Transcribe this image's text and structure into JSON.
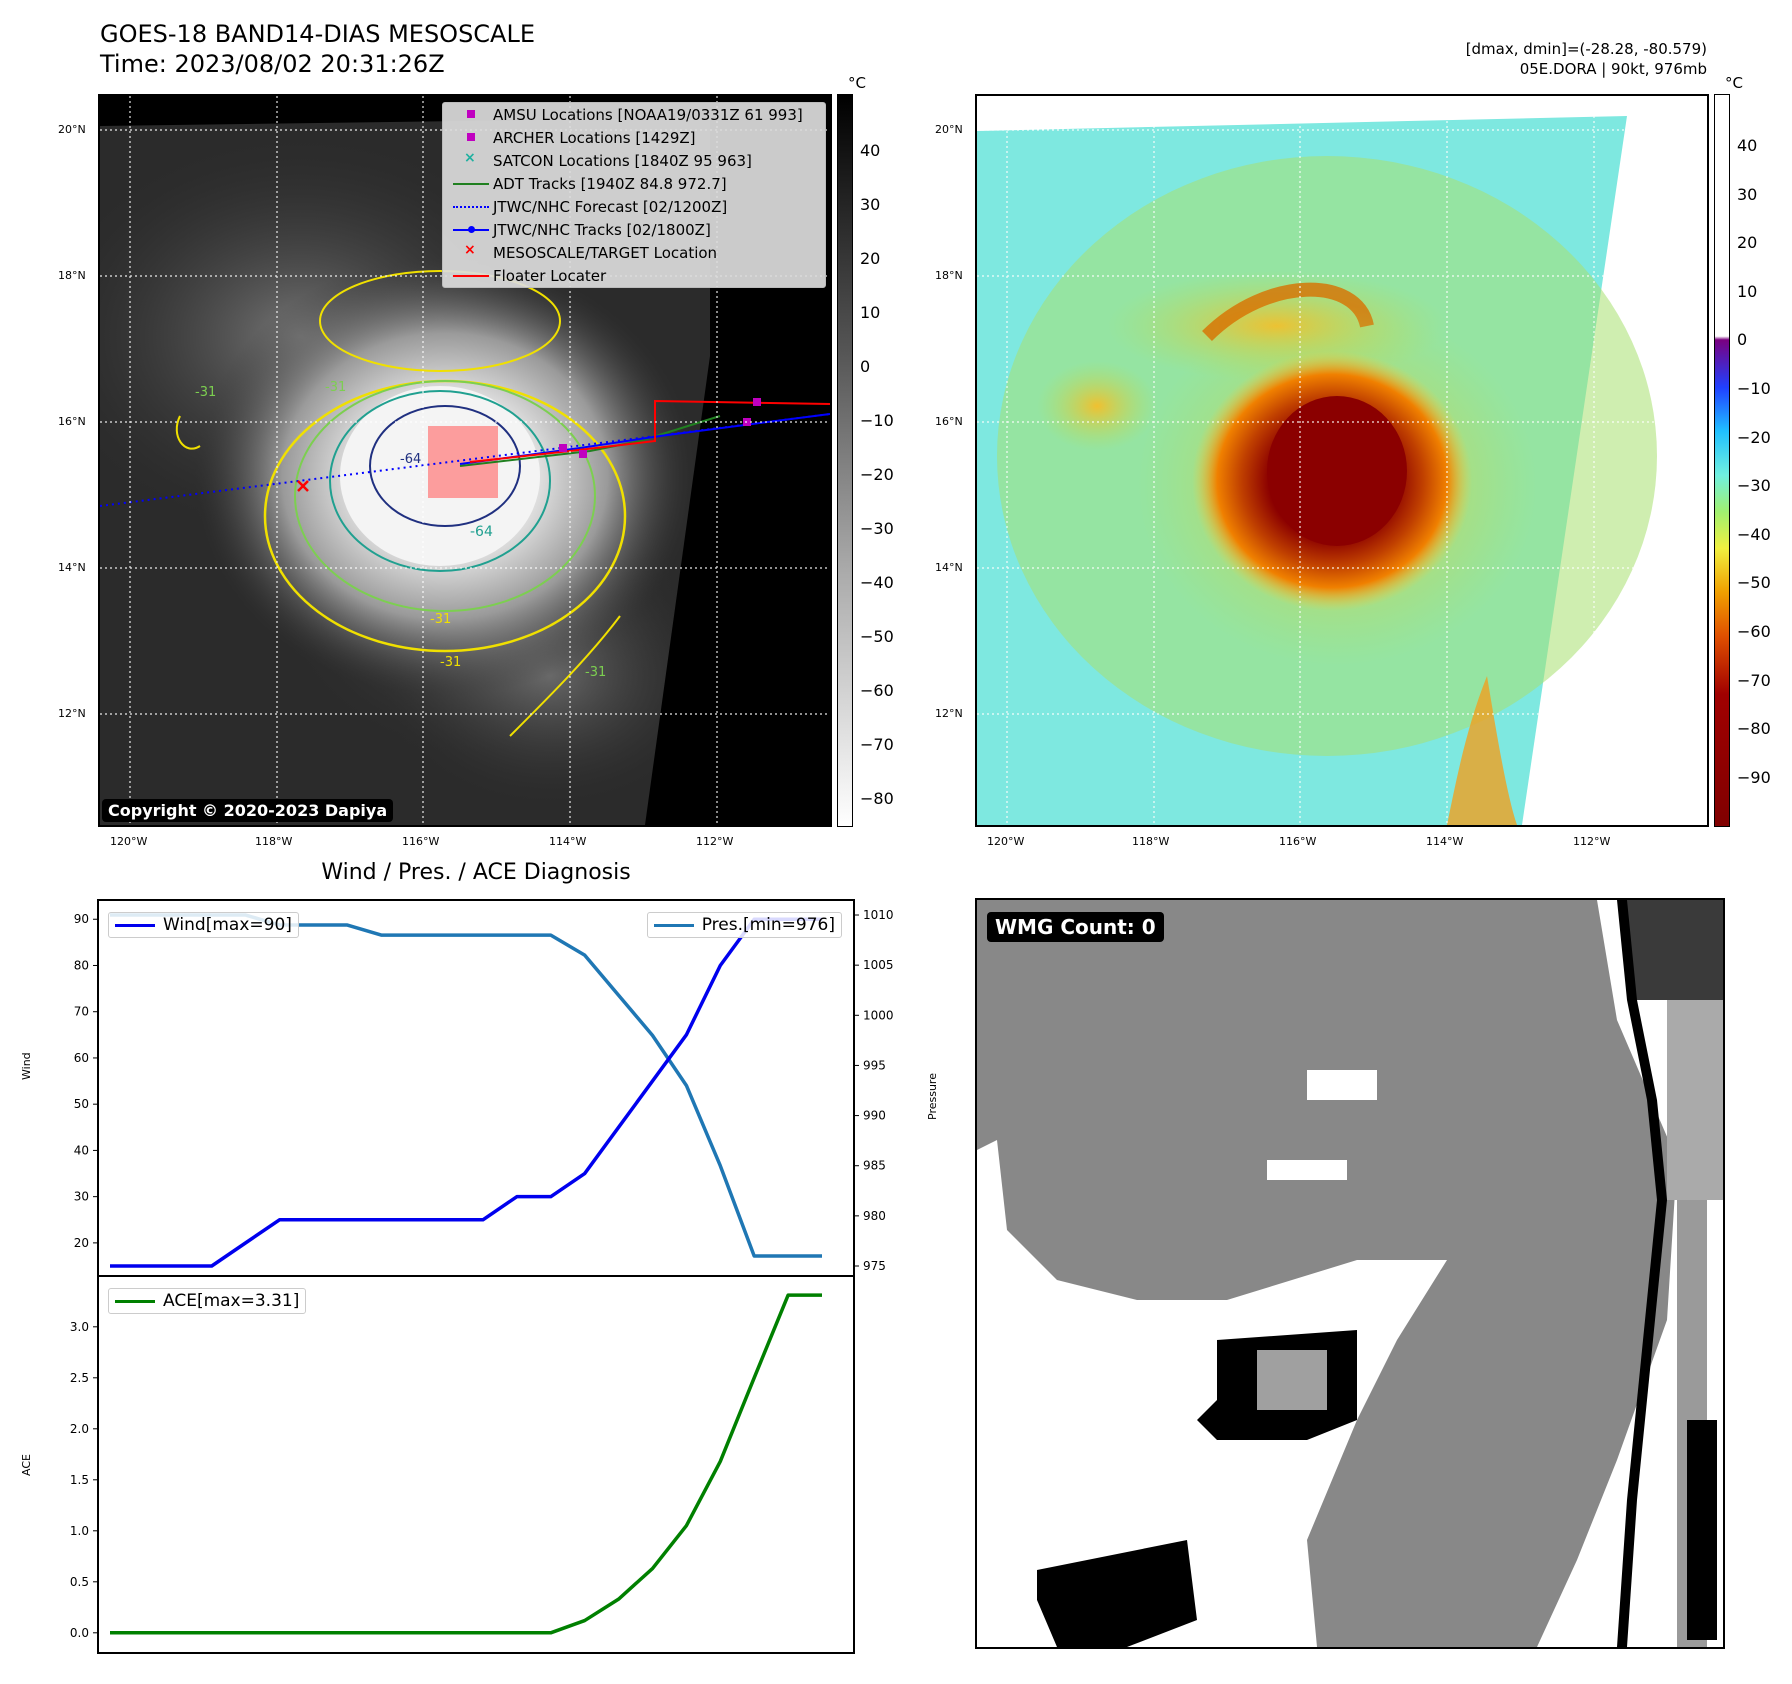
{
  "satellite_panel": {
    "title_line1": "GOES-18 BAND14-DIAS MESOSCALE",
    "title_line2": "Time: 2023/08/02 20:31:26Z",
    "copyright": "Copyright © 2020-2023 Dapiya",
    "colorbar_unit": "°C",
    "colorbar_ticks": [
      "40",
      "30",
      "20",
      "10",
      "0",
      "−10",
      "−20",
      "−30",
      "−40",
      "−50",
      "−60",
      "−70",
      "−80"
    ],
    "lat_labels": [
      "20°N",
      "18°N",
      "16°N",
      "14°N",
      "12°N"
    ],
    "lon_labels": [
      "120°W",
      "118°W",
      "116°W",
      "114°W",
      "112°W"
    ],
    "contour_labels": [
      "-31",
      "-31",
      "-64",
      "-64",
      "-31",
      "-31",
      "-31"
    ],
    "legend": [
      {
        "label": "AMSU Locations [NOAA19/0331Z 61 993]",
        "symbol": "square",
        "color": "#c000c0"
      },
      {
        "label": "ARCHER Locations [1429Z]",
        "symbol": "square",
        "color": "#c000c0"
      },
      {
        "label": "SATCON Locations [1840Z 95 963]",
        "symbol": "x",
        "color": "#20b0a0"
      },
      {
        "label": "ADT Tracks [1940Z 84.8 972.7]",
        "symbol": "line",
        "color": "#208020"
      },
      {
        "label": "JTWC/NHC Forecast [02/1200Z]",
        "symbol": "dotted",
        "color": "#0000ff"
      },
      {
        "label": "JTWC/NHC Tracks [02/1800Z]",
        "symbol": "line-dot",
        "color": "#0000ff"
      },
      {
        "label": "MESOSCALE/TARGET Location",
        "symbol": "x",
        "color": "#ff0000"
      },
      {
        "label": "Floater Locater",
        "symbol": "line",
        "color": "#ff0000"
      }
    ]
  },
  "enhanced_panel": {
    "header_line1": "[dmax, dmin]=(-28.28, -80.579)",
    "header_line2": "05E.DORA | 90kt, 976mb",
    "colorbar_unit": "°C",
    "colorbar_ticks": [
      "40",
      "30",
      "20",
      "10",
      "0",
      "−10",
      "−20",
      "−30",
      "−40",
      "−50",
      "−60",
      "−70",
      "−80",
      "−90"
    ],
    "lat_labels": [
      "20°N",
      "18°N",
      "16°N",
      "14°N",
      "12°N"
    ],
    "lon_labels": [
      "120°W",
      "118°W",
      "116°W",
      "114°W",
      "112°W"
    ]
  },
  "wmg_panel": {
    "badge": "WMG Count: 0"
  },
  "chart_data": [
    {
      "type": "line",
      "title": "Wind / Pres. / ACE Diagnosis",
      "x": [
        0,
        1,
        2,
        3,
        4,
        5,
        6,
        7,
        8,
        9,
        10,
        11,
        12,
        13,
        14,
        15,
        16,
        17,
        18,
        19,
        20,
        21
      ],
      "ylabel": "Wind",
      "ylim": [
        15,
        92
      ],
      "yticks": [
        20,
        30,
        40,
        50,
        60,
        70,
        80,
        90
      ],
      "y2label": "Pressure",
      "y2lim": [
        975,
        1010.5
      ],
      "y2ticks": [
        975,
        980,
        985,
        990,
        995,
        1000,
        1005,
        1010
      ],
      "series": [
        {
          "name": "Wind[max=90]",
          "axis": "left",
          "color": "#0000ee",
          "values": [
            15,
            15,
            15,
            15,
            20,
            25,
            25,
            25,
            25,
            25,
            25,
            25,
            30,
            30,
            35,
            45,
            55,
            65,
            80,
            90,
            90,
            90
          ]
        },
        {
          "name": "Pres.[min=976]",
          "axis": "right",
          "color": "#1f77b4",
          "values": [
            1010,
            1010,
            1010,
            1010,
            1010,
            1009,
            1009,
            1009,
            1008,
            1008,
            1008,
            1008,
            1008,
            1008,
            1006,
            1002,
            998,
            993,
            985,
            976,
            976,
            976
          ]
        }
      ],
      "legend_placement": [
        "top-left",
        "top-right"
      ]
    },
    {
      "type": "line",
      "x": [
        0,
        1,
        2,
        3,
        4,
        5,
        6,
        7,
        8,
        9,
        10,
        11,
        12,
        13,
        14,
        15,
        16,
        17,
        18,
        19,
        20,
        21
      ],
      "ylabel": "ACE",
      "ylim": [
        -0.1,
        3.4
      ],
      "yticks": [
        0.0,
        0.5,
        1.0,
        1.5,
        2.0,
        2.5,
        3.0
      ],
      "ytick_labels": [
        "0.0",
        "0.5",
        "1.0",
        "1.5",
        "2.0",
        "2.5",
        "3.0"
      ],
      "series": [
        {
          "name": "ACE[max=3.31]",
          "color": "#008000",
          "values": [
            0,
            0,
            0,
            0,
            0,
            0,
            0,
            0,
            0,
            0,
            0,
            0,
            0,
            0,
            0.12,
            0.33,
            0.63,
            1.05,
            1.68,
            2.5,
            3.31,
            3.31
          ]
        }
      ],
      "legend_placement": "top-left"
    }
  ]
}
